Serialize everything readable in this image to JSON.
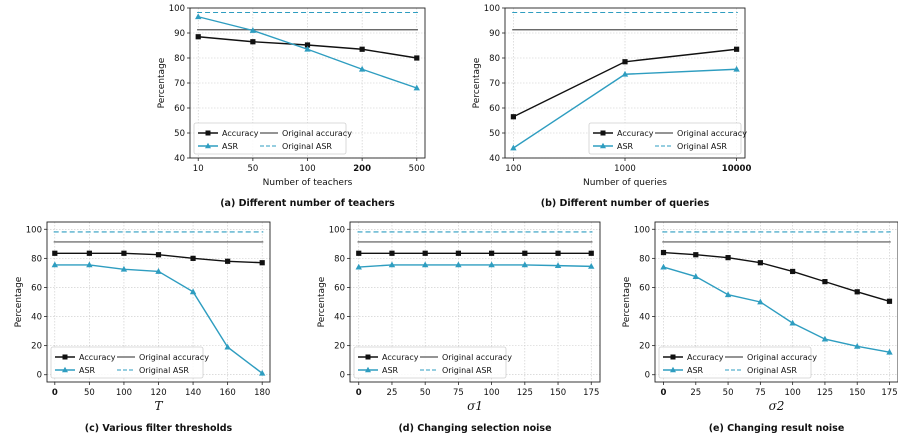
{
  "colors": {
    "accuracy": "#111111",
    "asr": "#2e9dc0",
    "orig_accuracy": "#555555",
    "orig_asr": "#2e9dc0",
    "grid": "#c8c8c8"
  },
  "chart_data": [
    {
      "type": "line",
      "caption": "(a) Different number of teachers",
      "xlabel": "Number of teachers",
      "xlabel_math": false,
      "ylabel": "Percentage",
      "x_ticks": [
        "10",
        "50",
        "100",
        "200",
        "500"
      ],
      "x_bold": [
        "200"
      ],
      "y_ticks": [
        "40",
        "50",
        "60",
        "70",
        "80",
        "90",
        "100"
      ],
      "ylim": [
        40,
        100
      ],
      "series": [
        {
          "name": "Accuracy",
          "values": [
            88.5,
            86.5,
            85.2,
            83.5,
            80
          ]
        },
        {
          "name": "ASR",
          "values": [
            96.5,
            91,
            83.5,
            75.5,
            68
          ]
        }
      ],
      "original_accuracy": 91.3,
      "original_asr": 98.2,
      "legend": {
        "accuracy": "Accuracy",
        "asr": "ASR",
        "orig_accuracy": "Original accuracy",
        "orig_asr": "Original ASR",
        "position": "lower-left"
      }
    },
    {
      "type": "line",
      "caption": "(b) Different number of queries",
      "xlabel": "Number of queries",
      "xlabel_math": false,
      "ylabel": "Percentage",
      "x_ticks": [
        "100",
        "1000",
        "10000"
      ],
      "x_bold": [
        "10000"
      ],
      "y_ticks": [
        "40",
        "50",
        "60",
        "70",
        "80",
        "90",
        "100"
      ],
      "ylim": [
        40,
        100
      ],
      "series": [
        {
          "name": "Accuracy",
          "values": [
            56.5,
            78.5,
            83.5
          ]
        },
        {
          "name": "ASR",
          "values": [
            44,
            73.5,
            75.5
          ]
        }
      ],
      "original_accuracy": 91.3,
      "original_asr": 98.2,
      "legend": {
        "accuracy": "Accuracy",
        "asr": "ASR",
        "orig_accuracy": "Original accuracy",
        "orig_asr": "Original ASR",
        "position": "lower-right"
      }
    },
    {
      "type": "line",
      "caption": "(c) Various filter thresholds",
      "xlabel": "T",
      "xlabel_math": true,
      "ylabel": "Percentage",
      "x_ticks": [
        "0",
        "50",
        "100",
        "120",
        "140",
        "160",
        "180"
      ],
      "x_bold": [
        "0"
      ],
      "y_ticks": [
        "0",
        "20",
        "40",
        "60",
        "80",
        "100"
      ],
      "ylim": [
        -5,
        105
      ],
      "series": [
        {
          "name": "Accuracy",
          "values": [
            83.5,
            83.5,
            83.5,
            82.5,
            80,
            78,
            77
          ]
        },
        {
          "name": "ASR",
          "values": [
            75.5,
            75.5,
            72.5,
            71,
            57,
            19,
            1
          ]
        }
      ],
      "original_accuracy": 91.3,
      "original_asr": 98.2,
      "legend": {
        "accuracy": "Accuracy",
        "asr": "ASR",
        "orig_accuracy": "Original accuracy",
        "orig_asr": "Original ASR",
        "position": "lower-left"
      }
    },
    {
      "type": "line",
      "caption": "(d) Changing selection noise",
      "xlabel": "σ1",
      "xlabel_math": true,
      "ylabel": "Percentage",
      "x_ticks": [
        "0",
        "25",
        "50",
        "75",
        "100",
        "125",
        "150",
        "175"
      ],
      "x_bold": [
        "0"
      ],
      "y_ticks": [
        "0",
        "20",
        "40",
        "60",
        "80",
        "100"
      ],
      "ylim": [
        -5,
        105
      ],
      "series": [
        {
          "name": "Accuracy",
          "values": [
            83.5,
            83.5,
            83.5,
            83.5,
            83.5,
            83.5,
            83.5,
            83.5
          ]
        },
        {
          "name": "ASR",
          "values": [
            74,
            75.5,
            75.5,
            75.5,
            75.5,
            75.5,
            75,
            74.5
          ]
        }
      ],
      "original_accuracy": 91.3,
      "original_asr": 98.2,
      "legend": {
        "accuracy": "Accuracy",
        "asr": "ASR",
        "orig_accuracy": "Original accuracy",
        "orig_asr": "Original ASR",
        "position": "lower-left"
      }
    },
    {
      "type": "line",
      "caption": "(e) Changing result noise",
      "xlabel": "σ2",
      "xlabel_math": true,
      "ylabel": "Percentage",
      "x_ticks": [
        "0",
        "25",
        "50",
        "75",
        "100",
        "125",
        "150",
        "175"
      ],
      "x_bold": [
        "0"
      ],
      "y_ticks": [
        "0",
        "20",
        "40",
        "60",
        "80",
        "100"
      ],
      "ylim": [
        -5,
        105
      ],
      "series": [
        {
          "name": "Accuracy",
          "values": [
            84,
            82.5,
            80.5,
            77,
            71,
            64,
            57,
            50.5
          ]
        },
        {
          "name": "ASR",
          "values": [
            74,
            67.5,
            55,
            50,
            35.5,
            24.5,
            19.5,
            15.5
          ]
        }
      ],
      "original_accuracy": 91.3,
      "original_asr": 98.2,
      "legend": {
        "accuracy": "Accuracy",
        "asr": "ASR",
        "orig_accuracy": "Original accuracy",
        "orig_asr": "Original ASR",
        "position": "lower-left"
      }
    }
  ]
}
